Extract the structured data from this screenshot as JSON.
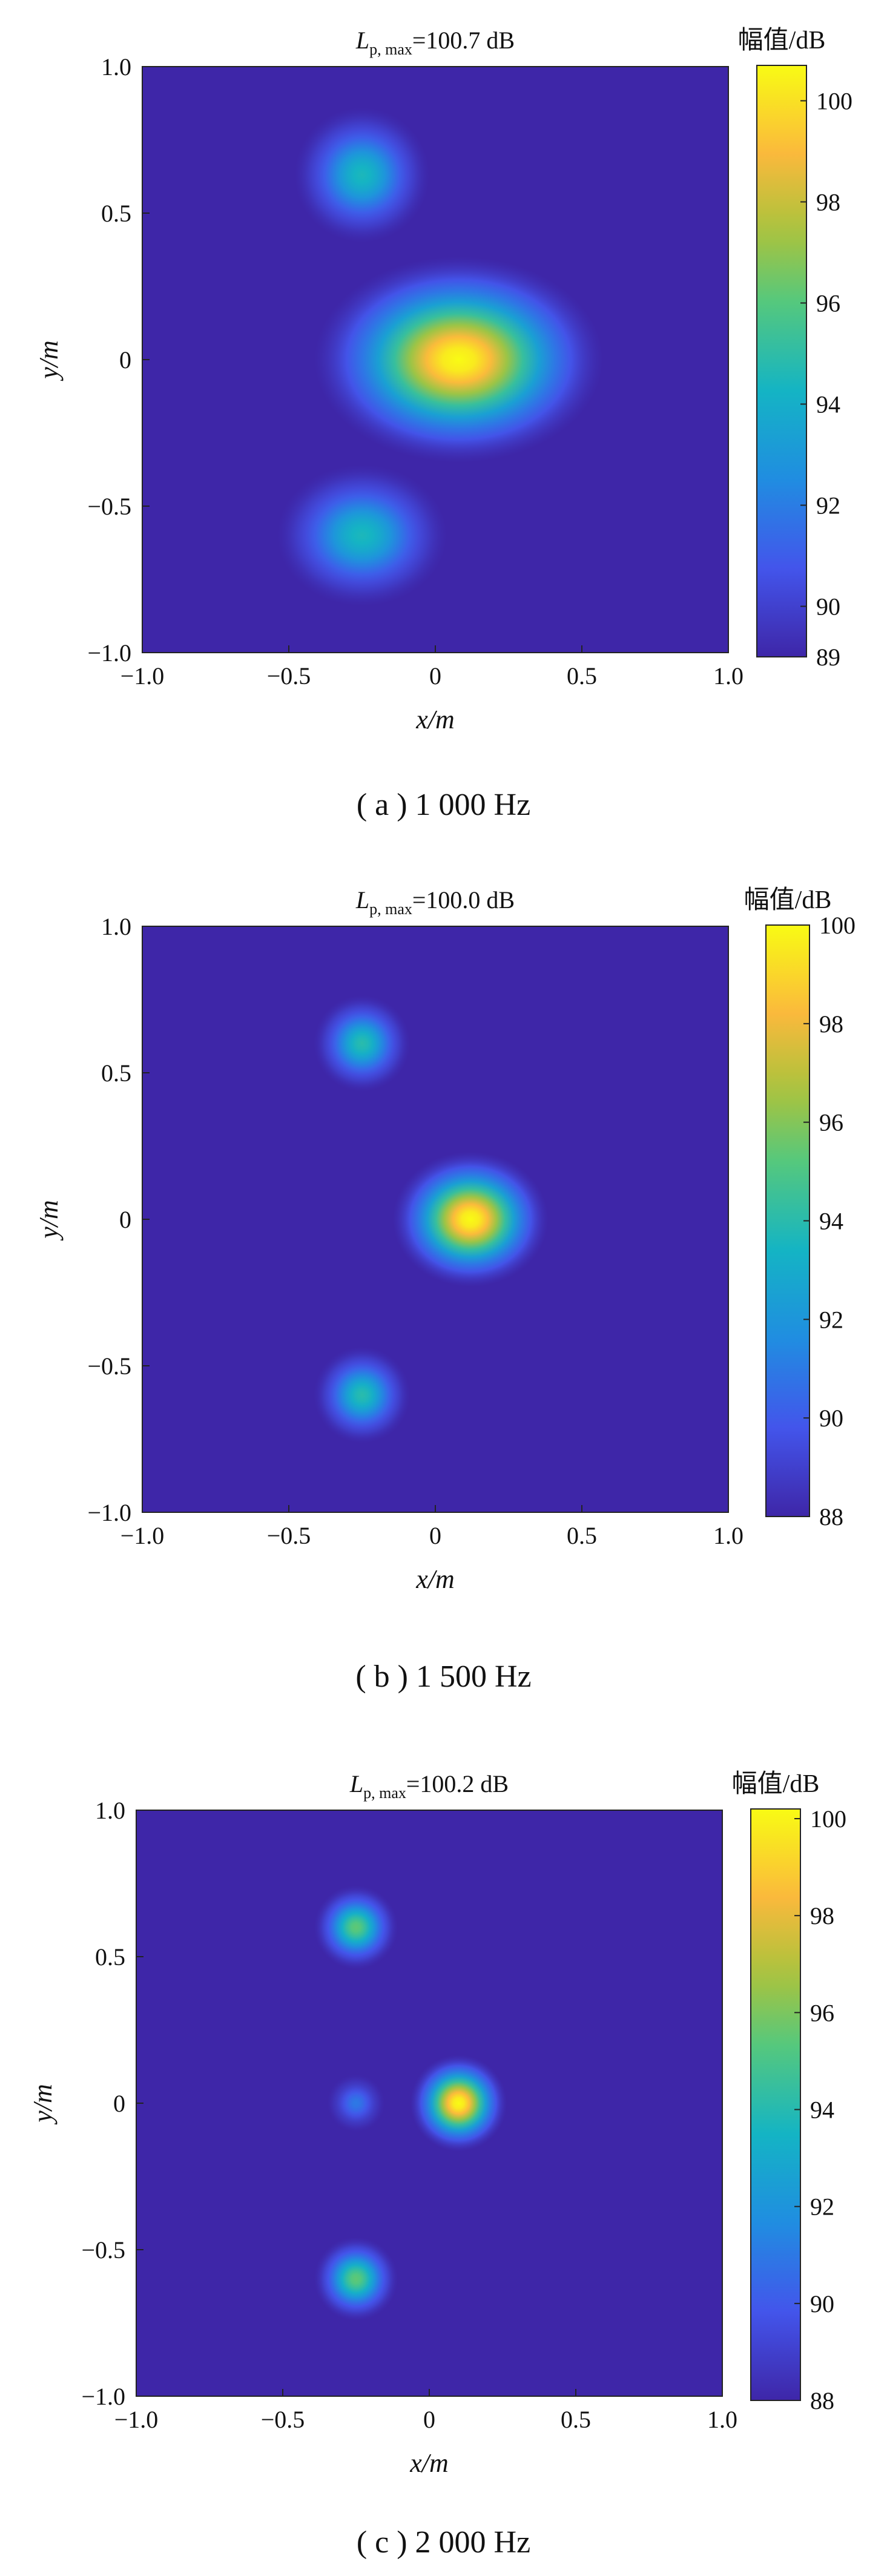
{
  "chart_data": [
    {
      "type": "heatmap",
      "title": "=100.7 dB",
      "title_symbol": "L",
      "title_subscript": "p, max",
      "xlabel": "x/m",
      "ylabel": "y/m",
      "xlim": [
        -1.0,
        1.0
      ],
      "ylim": [
        -1.0,
        1.0
      ],
      "x_ticks": [
        "−1.0",
        "−0.5",
        "0",
        "0.5",
        "1.0"
      ],
      "y_ticks": [
        "1.0",
        "0.5",
        "0",
        "−0.5",
        "−1.0"
      ],
      "colorbar_label": "幅值/dB",
      "colorbar_range": [
        89,
        100.7
      ],
      "colorbar_ticks": [
        "100",
        "98",
        "96",
        "94",
        "92",
        "90",
        "89"
      ],
      "sources": [
        {
          "x": -0.25,
          "y": 0.63,
          "peak_db": 94.5
        },
        {
          "x": 0.08,
          "y": 0.0,
          "peak_db": 100.7
        },
        {
          "x": -0.25,
          "y": -0.6,
          "peak_db": 94.5
        }
      ],
      "caption": "( a ) 1 000 Hz"
    },
    {
      "type": "heatmap",
      "title": "=100.0 dB",
      "title_symbol": "L",
      "title_subscript": "p, max",
      "xlabel": "x/m",
      "ylabel": "y/m",
      "xlim": [
        -1.0,
        1.0
      ],
      "ylim": [
        -1.0,
        1.0
      ],
      "x_ticks": [
        "−1.0",
        "−0.5",
        "0",
        "0.5",
        "1.0"
      ],
      "y_ticks": [
        "1.0",
        "0.5",
        "0",
        "−0.5",
        "−1.0"
      ],
      "colorbar_label": "幅值/dB",
      "colorbar_range": [
        88,
        100
      ],
      "colorbar_ticks": [
        "100",
        "98",
        "96",
        "94",
        "92",
        "90",
        "88"
      ],
      "sources": [
        {
          "x": -0.25,
          "y": 0.6,
          "peak_db": 94.0
        },
        {
          "x": 0.12,
          "y": 0.0,
          "peak_db": 100.0
        },
        {
          "x": -0.25,
          "y": -0.6,
          "peak_db": 94.0
        }
      ],
      "caption": "( b ) 1 500 Hz"
    },
    {
      "type": "heatmap",
      "title": "=100.2 dB",
      "title_symbol": "L",
      "title_subscript": "p, max",
      "xlabel": "x/m",
      "ylabel": "y/m",
      "xlim": [
        -1.0,
        1.0
      ],
      "ylim": [
        -1.0,
        1.0
      ],
      "x_ticks": [
        "−1.0",
        "−0.5",
        "0",
        "0.5",
        "1.0"
      ],
      "y_ticks": [
        "1.0",
        "0.5",
        "0",
        "−0.5",
        "−1.0"
      ],
      "colorbar_label": "幅值/dB",
      "colorbar_range": [
        88,
        100.2
      ],
      "colorbar_ticks": [
        "100",
        "98",
        "96",
        "94",
        "92",
        "90",
        "88"
      ],
      "sources": [
        {
          "x": -0.25,
          "y": 0.6,
          "peak_db": 95.5
        },
        {
          "x": -0.25,
          "y": 0.0,
          "peak_db": 91.0
        },
        {
          "x": 0.1,
          "y": 0.0,
          "peak_db": 100.2
        },
        {
          "x": -0.25,
          "y": -0.6,
          "peak_db": 95.5
        }
      ],
      "caption": "( c ) 2 000 Hz"
    }
  ]
}
